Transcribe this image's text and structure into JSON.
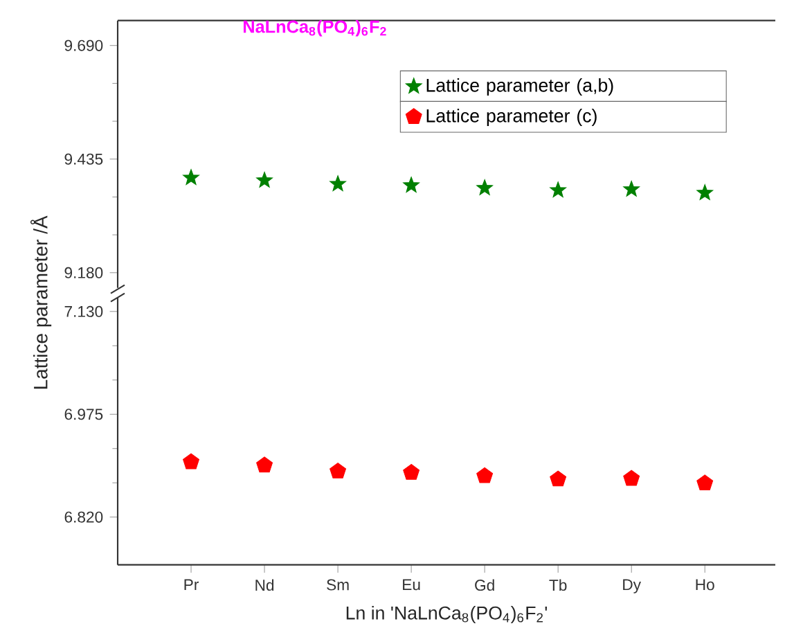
{
  "chart_data": [
    {
      "type": "scatter",
      "title": "**NaLnCa$_{8}$(PO$_{4}$)$_{6}$F$_{2}$**",
      "categories": [
        null,
        null,
        null,
        null,
        null,
        null,
        null,
        null
      ],
      "series": [
        {
          "name": "Lattice parameter (a,b)",
          "color": "#008000",
          "values": [
            9.393,
            9.387,
            9.379,
            9.376,
            9.37,
            9.365,
            9.367,
            9.359
          ]
        }
      ],
      "marker": "star",
      "legend": "top right",
      "tick_labels": "y",
      "ylim": [
        9.146,
        9.746
      ],
      "yticks": [
        {
          "value": 9.18,
          "label": "9.180"
        },
        {
          "value": 9.435,
          "label": "9.435"
        },
        {
          "value": 9.69,
          "label": "9.690"
        }
      ]
    },
    {
      "type": "scatter",
      "xlabel": "Ln in 'NaLnCa$_{8}$(PO$_{4}$)$_{6}$F$_{2}$'",
      "ylabel": "Lattice parameter /Å",
      "categories": [
        "Pr",
        "Nd",
        "Sm",
        "Eu",
        "Gd",
        "Tb",
        "Dy",
        "Ho"
      ],
      "series": [
        {
          "name": "Lattice parameter (c)",
          "color": "#ff0000",
          "values": [
            6.903,
            6.898,
            6.889,
            6.887,
            6.882,
            6.877,
            6.878,
            6.871
          ]
        }
      ],
      "legend": "top right",
      "ylim": [
        6.748,
        7.151
      ],
      "yticks": [
        {
          "value": 6.82,
          "label": "6.820"
        },
        {
          "value": 6.975,
          "label": "6.975"
        },
        {
          "value": 7.13,
          "label": "7.130"
        }
      ]
    }
  ]
}
